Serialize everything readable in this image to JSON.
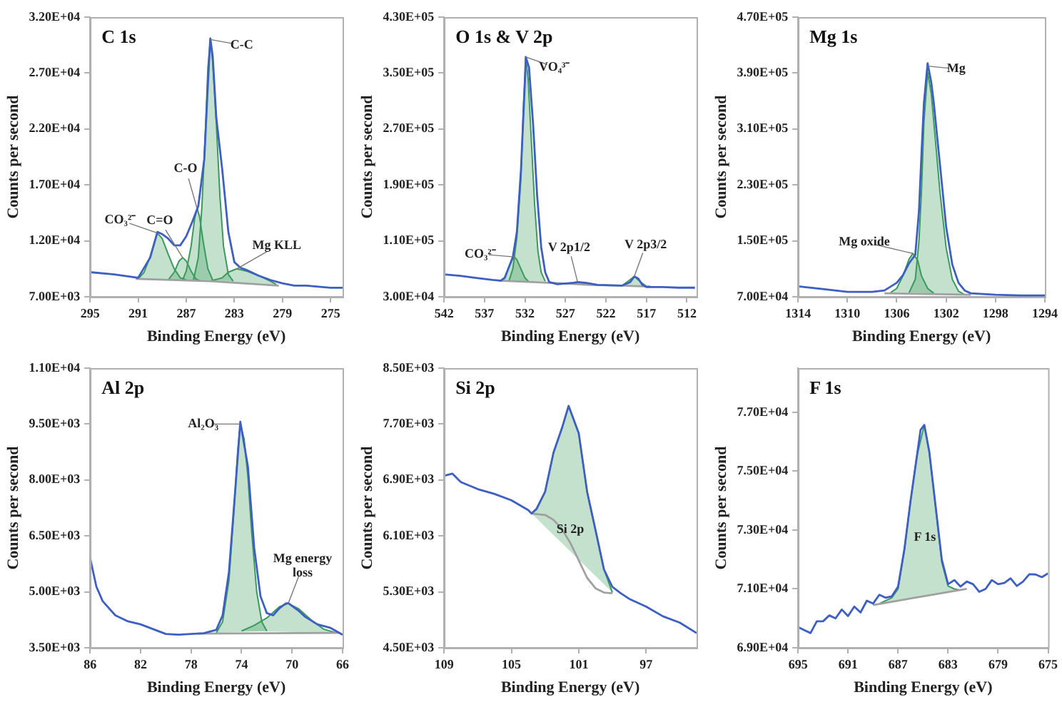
{
  "chart_data": [
    {
      "type": "line",
      "title": "C 1s",
      "xlabel": "Binding Energy (eV)",
      "ylabel": "Counts per second",
      "xlim": [
        295,
        274
      ],
      "xticks": [
        295,
        291,
        287,
        283,
        279,
        275
      ],
      "ylim": [
        7000,
        32000
      ],
      "yticks": [
        {
          "value": 7000,
          "label": "7.00E+03"
        },
        {
          "value": 12000,
          "label": "1.20E+04"
        },
        {
          "value": 17000,
          "label": "1.70E+04"
        },
        {
          "value": 22000,
          "label": "2.20E+04"
        },
        {
          "value": 27000,
          "label": "2.70E+04"
        },
        {
          "value": 32000,
          "label": "3.20E+04"
        }
      ],
      "series": [
        {
          "type": "line",
          "color": "#3d5fc4",
          "x": [
            295,
            293,
            291,
            290,
            289.5,
            289.4,
            289,
            288.5,
            288,
            287.5,
            287,
            286.5,
            286,
            285.5,
            285.2,
            285,
            284.8,
            284.5,
            284,
            283.5,
            283,
            282.5,
            282,
            281,
            280,
            279,
            278,
            277,
            276,
            275,
            274
          ],
          "values": [
            9200,
            9000,
            8700,
            10500,
            12400,
            12800,
            12600,
            12200,
            11600,
            11600,
            12400,
            13700,
            15100,
            19300,
            26000,
            30100,
            28500,
            23000,
            18300,
            12800,
            10100,
            9600,
            9400,
            8900,
            8500,
            8200,
            8000,
            8000,
            7900,
            7800,
            7800
          ]
        },
        {
          "type": "line",
          "color": "#a0a0a0",
          "x": [
            291.2,
            285,
            279.3
          ],
          "values": [
            8600,
            8400,
            8000
          ]
        },
        {
          "type": "area",
          "color": "#3a9a5c",
          "x": [
            291,
            290.5,
            290,
            289.5,
            289.4,
            289,
            288.5,
            288,
            287.5,
            287
          ],
          "values": [
            8600,
            9200,
            10600,
            12400,
            12700,
            12200,
            10800,
            9500,
            8700,
            8500
          ]
        },
        {
          "type": "area",
          "color": "#3a9a5c",
          "x": [
            288.5,
            288,
            287.6,
            287.3,
            287,
            286.6,
            286.2,
            285.8
          ],
          "values": [
            8500,
            9200,
            10200,
            10500,
            10200,
            9300,
            8600,
            8400
          ]
        },
        {
          "type": "area",
          "color": "#3a9a5c",
          "x": [
            287.3,
            287,
            286.6,
            286.3,
            286.1,
            285.9,
            285.6,
            285.2,
            284.8
          ],
          "values": [
            8500,
            9300,
            11500,
            14000,
            14900,
            14200,
            12000,
            9500,
            8500
          ]
        },
        {
          "type": "area",
          "color": "#3a9a5c",
          "x": [
            286.4,
            286,
            285.7,
            285.4,
            285.2,
            285,
            284.8,
            284.5,
            284.2,
            283.9,
            283.5,
            283.1
          ],
          "values": [
            8500,
            10500,
            15000,
            22000,
            27500,
            30000,
            28000,
            22500,
            16000,
            11500,
            9000,
            8400
          ]
        },
        {
          "type": "area",
          "color": "#3a9a5c",
          "x": [
            285,
            284,
            283.5,
            282.8,
            282,
            281,
            280,
            279.5
          ],
          "values": [
            8400,
            8700,
            9200,
            9500,
            9300,
            8900,
            8400,
            8100
          ]
        }
      ],
      "annotations": [
        {
          "text": "CO₃²⁻",
          "x": 289.4,
          "y": 12700
        },
        {
          "text": "C=O",
          "x": 287.3,
          "y": 10500
        },
        {
          "text": "C-O",
          "x": 286.1,
          "y": 14900
        },
        {
          "text": "C-C",
          "x": 285,
          "y": 30000
        },
        {
          "text": "Mg KLL",
          "x": 282.8,
          "y": 9500
        }
      ]
    },
    {
      "type": "line",
      "title": "O 1s & V 2p",
      "xlabel": "Binding Energy (eV)",
      "ylabel": "Counts per second",
      "xlim": [
        542,
        510.8
      ],
      "xticks": [
        542,
        537,
        532,
        527,
        522,
        517,
        512
      ],
      "ylim": [
        30000,
        430000
      ],
      "yticks": [
        {
          "value": 30000,
          "label": "3.00E+04"
        },
        {
          "value": 110000,
          "label": "1.10E+05"
        },
        {
          "value": 190000,
          "label": "1.90E+05"
        },
        {
          "value": 270000,
          "label": "2.70E+05"
        },
        {
          "value": 350000,
          "label": "3.50E+05"
        },
        {
          "value": 430000,
          "label": "4.30E+05"
        }
      ],
      "series": [
        {
          "type": "line",
          "color": "#3d5fc4",
          "x": [
            542,
            540,
            538,
            536,
            535,
            534.5,
            534,
            533.5,
            533,
            532.5,
            532,
            531.9,
            531.5,
            531,
            530.5,
            530,
            529.5,
            529,
            528,
            526,
            525.5,
            524.5,
            523,
            520,
            519,
            518.5,
            518,
            517.5,
            517,
            515,
            513,
            511
          ],
          "values": [
            62000,
            60000,
            57000,
            54000,
            53000,
            57000,
            72000,
            87000,
            123000,
            211000,
            340000,
            373000,
            358000,
            277000,
            175000,
            101000,
            65000,
            51000,
            48000,
            50000,
            51000,
            50000,
            47000,
            46000,
            51000,
            59000,
            56000,
            47000,
            44000,
            44000,
            43000,
            43000
          ]
        },
        {
          "type": "line",
          "color": "#a0a0a0",
          "x": [
            535.2,
            529,
            527,
            524,
            520,
            517.5,
            516.5
          ],
          "values": [
            53000,
            50000,
            49000,
            47000,
            46000,
            45000,
            45000
          ]
        },
        {
          "type": "area",
          "color": "#3a9a5c",
          "x": [
            535,
            534.5,
            534,
            533.6,
            533.3,
            533,
            532.5,
            532,
            531.5
          ],
          "values": [
            53000,
            58000,
            72000,
            83000,
            87000,
            83000,
            70000,
            57000,
            51000
          ]
        },
        {
          "type": "area",
          "color": "#3a9a5c",
          "x": [
            534,
            533.5,
            533,
            532.5,
            532.2,
            531.9,
            531.6,
            531.2,
            530.8,
            530.4,
            530,
            529.5
          ],
          "values": [
            52000,
            70000,
            115000,
            200000,
            300000,
            373000,
            340000,
            250000,
            160000,
            95000,
            65000,
            52000
          ]
        },
        {
          "type": "area",
          "color": "#3a9a5c",
          "x": [
            527,
            526,
            525.5,
            525,
            524
          ],
          "values": [
            48000,
            50000,
            51000,
            50000,
            47000
          ]
        },
        {
          "type": "area",
          "color": "#3a9a5c",
          "x": [
            520,
            519.3,
            518.5,
            517.8,
            517
          ],
          "values": [
            46000,
            52000,
            59000,
            52000,
            45000
          ]
        }
      ],
      "annotations": [
        {
          "text": "VO₄³⁻",
          "x": 531.9,
          "y": 373000
        },
        {
          "text": "CO₃²⁻",
          "x": 533.3,
          "y": 87000
        },
        {
          "text": "V 2p1/2",
          "x": 525.5,
          "y": 51000
        },
        {
          "text": "V 2p3/2",
          "x": 518.5,
          "y": 59000
        }
      ]
    },
    {
      "type": "line",
      "title": "Mg 1s",
      "xlabel": "Binding Energy (eV)",
      "ylabel": "Counts per second",
      "xlim": [
        1314,
        1294
      ],
      "xticks": [
        1314,
        1310,
        1306,
        1302,
        1298,
        1294
      ],
      "ylim": [
        70000,
        470000
      ],
      "yticks": [
        {
          "value": 70000,
          "label": "7.00E+04"
        },
        {
          "value": 150000,
          "label": "1.50E+05"
        },
        {
          "value": 230000,
          "label": "2.30E+05"
        },
        {
          "value": 310000,
          "label": "3.10E+05"
        },
        {
          "value": 390000,
          "label": "3.90E+05"
        },
        {
          "value": 470000,
          "label": "4.70E+05"
        }
      ],
      "series": [
        {
          "type": "line",
          "color": "#3d5fc4",
          "x": [
            1314,
            1312,
            1310,
            1308,
            1307,
            1306,
            1305.5,
            1305,
            1304.5,
            1304.2,
            1304,
            1303.8,
            1303.5,
            1303.2,
            1303,
            1302.5,
            1302,
            1301.5,
            1301,
            1300.5,
            1300,
            1298,
            1296,
            1294
          ],
          "values": [
            85000,
            81000,
            77000,
            77000,
            79000,
            90000,
            101000,
            118000,
            130000,
            193000,
            273000,
            347000,
            404000,
            376000,
            347000,
            259000,
            170000,
            116000,
            90000,
            79000,
            75000,
            73000,
            72000,
            72000
          ]
        },
        {
          "type": "line",
          "color": "#a0a0a0",
          "x": [
            1307,
            1300
          ],
          "values": [
            75000,
            73000
          ]
        },
        {
          "type": "area",
          "color": "#3a9a5c",
          "x": [
            1306.5,
            1306,
            1305.5,
            1305,
            1304.7,
            1304.3,
            1304,
            1303.5,
            1303
          ],
          "values": [
            76000,
            82000,
            100000,
            124000,
            132000,
            122000,
            100000,
            82000,
            75000
          ]
        },
        {
          "type": "area",
          "color": "#3a9a5c",
          "x": [
            1305,
            1304.5,
            1304.2,
            1304,
            1303.8,
            1303.5,
            1303.2,
            1303,
            1302.5,
            1302,
            1301.5,
            1301,
            1300.5
          ],
          "values": [
            76000,
            95000,
            150000,
            220000,
            320000,
            391000,
            360000,
            320000,
            220000,
            140000,
            95000,
            78000,
            73000
          ]
        }
      ],
      "annotations": [
        {
          "text": "Mg",
          "x": 1303.5,
          "y": 400000
        },
        {
          "text": "Mg oxide",
          "x": 1304.7,
          "y": 132000
        }
      ]
    },
    {
      "type": "line",
      "title": "Al 2p",
      "xlabel": "Binding Energy (eV)",
      "ylabel": "Counts per second",
      "xlim": [
        86,
        66
      ],
      "xticks": [
        86,
        82,
        78,
        74,
        70,
        66
      ],
      "ylim": [
        3500,
        11000
      ],
      "yticks": [
        {
          "value": 3500,
          "label": "3.50E+03"
        },
        {
          "value": 5000,
          "label": "5.00E+03"
        },
        {
          "value": 6500,
          "label": "6.50E+03"
        },
        {
          "value": 8000,
          "label": "8.00E+03"
        },
        {
          "value": 9500,
          "label": "9.50E+03"
        },
        {
          "value": 11000,
          "label": "1.10E+04"
        }
      ],
      "series": [
        {
          "type": "line",
          "color": "#3d5fc4",
          "x": [
            86,
            85.5,
            85,
            84,
            83,
            82,
            81,
            80,
            79,
            78,
            77,
            76,
            75.5,
            75,
            74.5,
            74.1,
            73.5,
            73,
            72.5,
            72,
            71.5,
            71,
            70.5,
            70.3,
            70,
            69.5,
            69,
            68,
            67,
            66
          ],
          "values": [
            5920,
            5140,
            4750,
            4370,
            4210,
            4130,
            4000,
            3870,
            3850,
            3870,
            3890,
            3980,
            4370,
            5530,
            7730,
            9560,
            8370,
            6180,
            4880,
            4430,
            4370,
            4560,
            4690,
            4700,
            4620,
            4500,
            4340,
            4130,
            4040,
            3850
          ]
        },
        {
          "type": "line",
          "color": "#a0a0a0",
          "x": [
            77.5,
            66.3
          ],
          "values": [
            3880,
            3900
          ]
        },
        {
          "type": "area",
          "color": "#3a9a5c",
          "x": [
            76,
            75.5,
            75,
            74.6,
            74.3,
            74.1,
            73.8,
            73.5,
            73.2,
            72.8,
            72.4,
            72
          ],
          "values": [
            3900,
            4200,
            5300,
            7200,
            8800,
            9500,
            9100,
            8100,
            6600,
            5000,
            4200,
            3950
          ]
        },
        {
          "type": "area",
          "color": "#3a9a5c",
          "x": [
            74,
            73,
            72,
            71,
            70.3,
            69.5,
            68.5,
            67.5,
            66.5
          ],
          "values": [
            3950,
            4100,
            4300,
            4600,
            4690,
            4550,
            4250,
            4000,
            3900
          ]
        }
      ],
      "annotations": [
        {
          "text": "Al₂O₃",
          "x": 74.1,
          "y": 9500
        },
        {
          "text": "Mg energy loss",
          "x": 70.3,
          "y": 4690
        }
      ]
    },
    {
      "type": "line",
      "title": "Si 2p",
      "xlabel": "Binding Energy (eV)",
      "ylabel": "Counts per second",
      "xlim": [
        109,
        94
      ],
      "xticks": [
        109,
        105,
        101,
        97
      ],
      "ylim": [
        4500,
        8500
      ],
      "yticks": [
        {
          "value": 4500,
          "label": "4.50E+03"
        },
        {
          "value": 5300,
          "label": "5.30E+03"
        },
        {
          "value": 6100,
          "label": "6.10E+03"
        },
        {
          "value": 6900,
          "label": "6.90E+03"
        },
        {
          "value": 7700,
          "label": "7.70E+03"
        },
        {
          "value": 8500,
          "label": "8.50E+03"
        }
      ],
      "series": [
        {
          "type": "line",
          "color": "#3d5fc4",
          "x": [
            109,
            108.5,
            108,
            107,
            106,
            105,
            104,
            103.8,
            103.5,
            103,
            102.5,
            102,
            101.6,
            101,
            100.5,
            100,
            99.5,
            99,
            98.5,
            98,
            97,
            96,
            95,
            94
          ],
          "values": [
            6960,
            6990,
            6870,
            6770,
            6700,
            6610,
            6470,
            6420,
            6490,
            6730,
            7290,
            7640,
            7960,
            7570,
            6730,
            6180,
            5620,
            5370,
            5280,
            5200,
            5090,
            4950,
            4860,
            4710
          ]
        },
        {
          "type": "line",
          "color": "#a0a0a0",
          "x": [
            103.8,
            103,
            102.5,
            102,
            101.5,
            101,
            100.5,
            100,
            99.5,
            99
          ],
          "values": [
            6420,
            6400,
            6330,
            6200,
            6000,
            5750,
            5500,
            5350,
            5290,
            5280
          ]
        },
        {
          "type": "area",
          "color": "#3a9a5c",
          "x": [
            103.8,
            103.5,
            103,
            102.5,
            102,
            101.6,
            101,
            100.5,
            100,
            99.5,
            99
          ],
          "values": [
            6420,
            6480,
            6730,
            7290,
            7640,
            7960,
            7570,
            6730,
            6180,
            5620,
            5290
          ]
        }
      ],
      "annotations": [
        {
          "text": "Si 2p",
          "x": 101.5,
          "y": 6190
        }
      ]
    },
    {
      "type": "line",
      "title": "F 1s",
      "xlabel": "Binding Energy (eV)",
      "ylabel": "Counts per second",
      "xlim": [
        695,
        675
      ],
      "xticks": [
        695,
        691,
        687,
        683,
        679,
        675
      ],
      "ylim": [
        69000,
        78500
      ],
      "yticks": [
        {
          "value": 69000,
          "label": "6.90E+04"
        },
        {
          "value": 71000,
          "label": "7.10E+04"
        },
        {
          "value": 73000,
          "label": "7.30E+04"
        },
        {
          "value": 75000,
          "label": "7.50E+04"
        },
        {
          "value": 77000,
          "label": "7.70E+04"
        }
      ],
      "series": [
        {
          "type": "line",
          "color": "#3d5fc4",
          "x": [
            695,
            694.5,
            694,
            693.5,
            693,
            692.5,
            692,
            691.5,
            691,
            690.5,
            690,
            689.5,
            689,
            688.5,
            688,
            687.5,
            687,
            686.5,
            686,
            685.5,
            685.2,
            684.9,
            684.5,
            684,
            683.5,
            683,
            682.5,
            682,
            681.5,
            681,
            680.5,
            680,
            679.5,
            679,
            678.5,
            678,
            677.5,
            677,
            676.5,
            676,
            675.5,
            675
          ],
          "values": [
            69700,
            69600,
            69500,
            69900,
            69900,
            70100,
            70000,
            70300,
            70080,
            70400,
            70200,
            70600,
            70500,
            70800,
            70700,
            70750,
            71080,
            72330,
            73990,
            75490,
            76400,
            76570,
            75650,
            73820,
            71990,
            71160,
            71300,
            71080,
            71250,
            71160,
            70900,
            71000,
            71300,
            71160,
            71200,
            71360,
            71100,
            71250,
            71500,
            71490,
            71400,
            71530
          ]
        },
        {
          "type": "line",
          "color": "#a0a0a0",
          "x": [
            689,
            685,
            681.5
          ],
          "values": [
            70450,
            70750,
            71000
          ]
        },
        {
          "type": "area",
          "color": "#3a9a5c",
          "x": [
            688.5,
            687.5,
            687,
            686.5,
            686,
            685.5,
            684.9,
            684.5,
            684,
            683.5,
            683,
            682.5,
            682
          ],
          "values": [
            70500,
            70700,
            71000,
            72300,
            74000,
            75500,
            76570,
            75650,
            73800,
            71900,
            71100,
            71000,
            70960
          ]
        }
      ],
      "annotations": [
        "F 1s"
      ]
    }
  ]
}
